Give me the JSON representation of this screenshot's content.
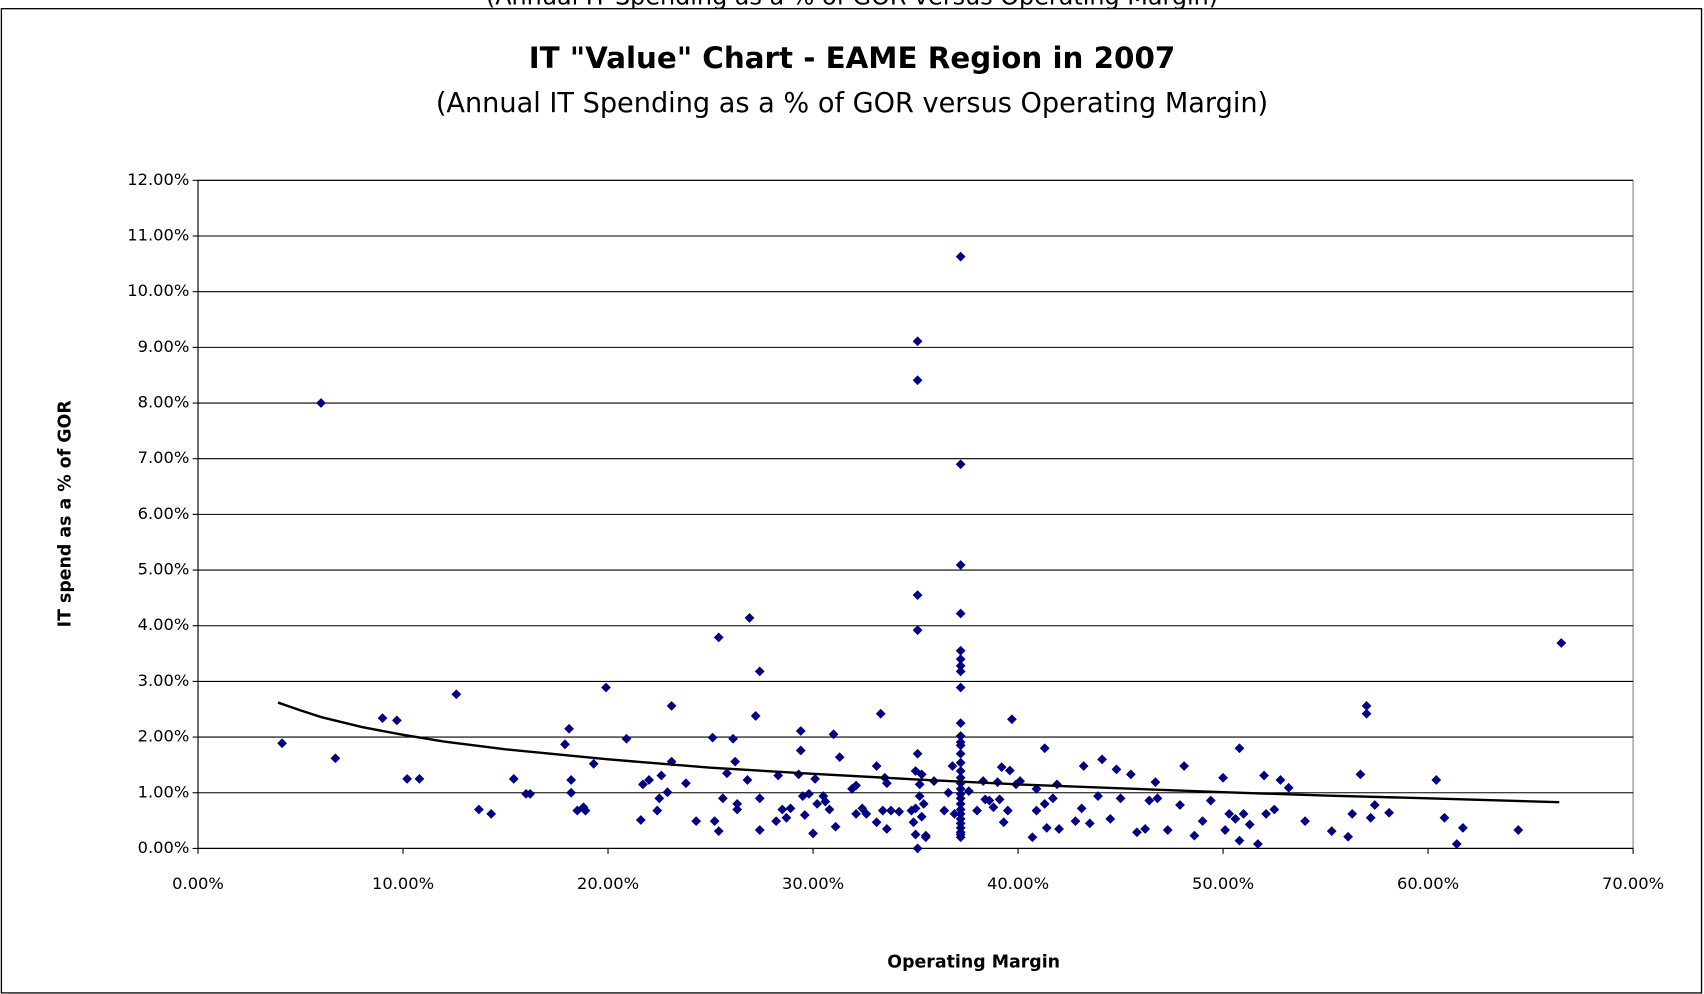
{
  "caption": "(Annual IT Spending as a % of GOR versus Operating Margin)",
  "chart_data": {
    "type": "scatter",
    "title": "IT \"Value\" Chart - EAME Region in 2007",
    "subtitle": "(Annual IT Spending as a % of GOR versus Operating Margin)",
    "x_label": "Operating Margin",
    "y_label": "IT spend as a % of GOR",
    "xlim": [
      0,
      70
    ],
    "ylim": [
      0,
      12
    ],
    "xticks": [
      {
        "value": 0,
        "label": "0.00%"
      },
      {
        "value": 10,
        "label": "10.00%"
      },
      {
        "value": 20,
        "label": "20.00%"
      },
      {
        "value": 30,
        "label": "30.00%"
      },
      {
        "value": 40,
        "label": "40.00%"
      },
      {
        "value": 50,
        "label": "50.00%"
      },
      {
        "value": 60,
        "label": "60.00%"
      },
      {
        "value": 70,
        "label": "70.00%"
      }
    ],
    "yticks": [
      {
        "value": 0,
        "label": "0.00%"
      },
      {
        "value": 1,
        "label": "1.00%"
      },
      {
        "value": 2,
        "label": "2.00%"
      },
      {
        "value": 3,
        "label": "3.00%"
      },
      {
        "value": 4,
        "label": "4.00%"
      },
      {
        "value": 5,
        "label": "5.00%"
      },
      {
        "value": 6,
        "label": "6.00%"
      },
      {
        "value": 7,
        "label": "7.00%"
      },
      {
        "value": 8,
        "label": "8.00%"
      },
      {
        "value": 9,
        "label": "9.00%"
      },
      {
        "value": 10,
        "label": "10.00%"
      },
      {
        "value": 11,
        "label": "11.00%"
      },
      {
        "value": 12,
        "label": "12.00%"
      }
    ],
    "grid": true,
    "series": [
      {
        "color": "#000080",
        "x": [
          4.1,
          6.0,
          6.7,
          9.0,
          9.7,
          10.2,
          10.8,
          12.6,
          13.7,
          14.3,
          15.4,
          16.0,
          16.2,
          17.9,
          18.1,
          18.2,
          18.2,
          18.5,
          18.8,
          18.9,
          19.3,
          19.9,
          20.9,
          21.6,
          21.7,
          22.0,
          22.4,
          22.5,
          22.6,
          22.9,
          23.1,
          23.1,
          23.8,
          24.3,
          25.1,
          25.2,
          25.4,
          25.4,
          25.6,
          25.8,
          26.1,
          26.2,
          26.3,
          26.3,
          26.8,
          26.9,
          27.2,
          27.4,
          27.4,
          27.4,
          28.2,
          28.3,
          28.5,
          28.7,
          28.9,
          29.4,
          29.4,
          29.3,
          29.5,
          29.6,
          29.8,
          30.0,
          30.1,
          30.2,
          30.5,
          30.6,
          30.8,
          31.0,
          31.1,
          31.3,
          31.9,
          32.1,
          32.1,
          32.4,
          32.6,
          33.1,
          33.1,
          33.3,
          33.4,
          33.5,
          33.6,
          33.6,
          33.8,
          34.2,
          34.8,
          34.9,
          35.0,
          35.0,
          35.1,
          35.0,
          35.1,
          35.1,
          35.1,
          35.1,
          35.1,
          35.2,
          35.2,
          35.3,
          35.3,
          35.4,
          35.5,
          35.5,
          35.9,
          36.4,
          36.6,
          36.8,
          36.9,
          37.2,
          37.2,
          37.2,
          37.2,
          37.2,
          37.2,
          37.2,
          37.2,
          37.2,
          37.2,
          37.2,
          37.2,
          37.2,
          37.2,
          37.2,
          37.2,
          37.2,
          37.2,
          37.2,
          37.2,
          37.2,
          37.2,
          37.2,
          37.2,
          37.2,
          37.2,
          37.2,
          37.2,
          37.2,
          37.2,
          37.6,
          38.0,
          38.3,
          38.4,
          38.6,
          38.8,
          39.0,
          39.1,
          39.2,
          39.3,
          39.5,
          39.6,
          39.7,
          39.9,
          40.1,
          40.7,
          40.9,
          40.9,
          41.3,
          41.3,
          41.4,
          41.7,
          41.9,
          42.0,
          42.8,
          43.1,
          43.2,
          43.5,
          43.9,
          44.1,
          44.5,
          44.8,
          45.0,
          45.5,
          45.8,
          46.2,
          46.4,
          46.7,
          46.8,
          47.3,
          47.9,
          48.1,
          48.6,
          49.0,
          49.4,
          50.0,
          50.1,
          50.3,
          50.6,
          50.8,
          50.8,
          51.0,
          51.3,
          51.7,
          52.0,
          52.1,
          52.5,
          52.8,
          53.2,
          54.0,
          55.3,
          56.1,
          56.3,
          56.7,
          57.0,
          57.0,
          57.2,
          57.4,
          58.1,
          60.4,
          60.8,
          61.4,
          61.7,
          64.4,
          66.5
        ],
        "values": [
          1.89,
          8.0,
          1.62,
          2.34,
          2.3,
          1.25,
          1.25,
          2.77,
          0.7,
          0.62,
          1.25,
          0.98,
          0.98,
          1.87,
          2.15,
          1.23,
          1.0,
          0.68,
          0.74,
          0.68,
          1.52,
          2.89,
          1.97,
          0.51,
          1.15,
          1.23,
          0.68,
          0.9,
          1.31,
          1.01,
          2.56,
          1.56,
          1.17,
          0.49,
          1.99,
          0.49,
          0.31,
          3.79,
          0.9,
          1.35,
          1.97,
          1.56,
          0.8,
          0.7,
          1.23,
          4.14,
          2.38,
          3.18,
          0.33,
          0.9,
          0.49,
          1.31,
          0.7,
          0.55,
          0.72,
          2.11,
          1.76,
          1.33,
          0.94,
          0.6,
          0.98,
          0.27,
          1.25,
          0.8,
          0.94,
          0.84,
          0.7,
          2.05,
          0.39,
          1.64,
          1.07,
          1.13,
          0.62,
          0.72,
          0.62,
          0.47,
          1.48,
          2.42,
          0.68,
          1.27,
          1.17,
          0.35,
          0.68,
          0.66,
          0.68,
          0.47,
          0.72,
          0.25,
          0.0,
          1.39,
          1.7,
          9.11,
          8.41,
          4.55,
          3.92,
          0.94,
          1.15,
          1.33,
          0.57,
          0.8,
          0.23,
          0.2,
          1.21,
          0.68,
          1.0,
          1.48,
          0.62,
          10.63,
          6.9,
          5.09,
          4.22,
          3.55,
          3.4,
          3.28,
          3.18,
          2.89,
          2.25,
          2.02,
          1.91,
          1.85,
          1.7,
          1.54,
          1.39,
          1.27,
          1.17,
          1.07,
          0.98,
          0.9,
          0.8,
          0.7,
          0.62,
          0.53,
          0.45,
          0.37,
          0.29,
          0.2,
          0.25,
          1.03,
          0.68,
          1.21,
          0.88,
          0.86,
          0.74,
          1.19,
          0.88,
          1.46,
          0.47,
          0.68,
          1.4,
          2.32,
          1.15,
          1.21,
          0.2,
          0.68,
          1.07,
          1.8,
          0.8,
          0.37,
          0.9,
          1.15,
          0.35,
          0.49,
          0.72,
          1.48,
          0.45,
          0.94,
          1.6,
          0.53,
          1.42,
          0.9,
          1.33,
          0.29,
          0.35,
          0.86,
          1.19,
          0.9,
          0.33,
          0.78,
          1.48,
          0.23,
          0.49,
          0.86,
          1.27,
          0.33,
          0.62,
          0.53,
          1.8,
          0.14,
          0.62,
          0.43,
          0.08,
          1.31,
          0.62,
          0.7,
          1.23,
          1.09,
          0.49,
          0.31,
          0.21,
          0.62,
          1.33,
          2.56,
          2.42,
          0.55,
          0.78,
          0.64,
          1.23,
          0.55,
          0.08,
          0.37,
          0.33,
          3.69
        ]
      }
    ],
    "trendline": {
      "color": "#000000",
      "x": [
        3.9,
        5,
        6,
        8,
        10,
        12,
        15,
        20,
        25,
        30,
        35,
        40,
        45,
        50,
        55,
        60,
        66.4
      ],
      "values": [
        2.62,
        2.48,
        2.36,
        2.18,
        2.04,
        1.92,
        1.78,
        1.6,
        1.45,
        1.34,
        1.24,
        1.15,
        1.08,
        1.01,
        0.95,
        0.9,
        0.83
      ]
    }
  }
}
